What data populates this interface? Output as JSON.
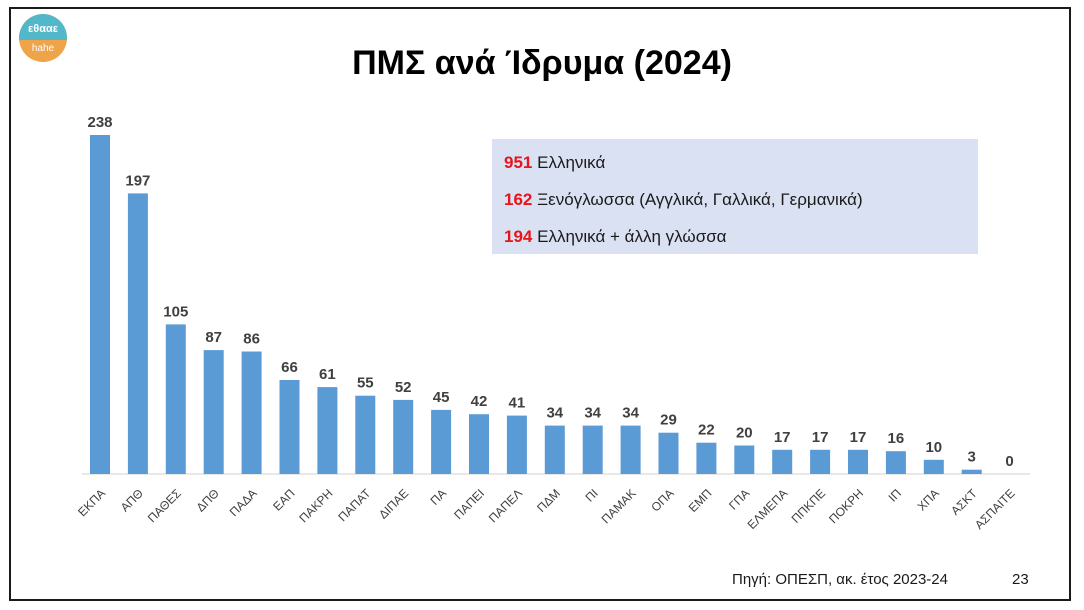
{
  "logo": {
    "top": "εθααε",
    "bottom": "hahe"
  },
  "chart_data": {
    "type": "bar",
    "title": "ΠΜΣ ανά Ίδρυμα (2024)",
    "xlabel": "",
    "ylabel": "",
    "categories": [
      "ΕΚΠΑ",
      "ΑΠΘ",
      "ΠΑΘΕΣ",
      "ΔΠΘ",
      "ΠΑΔΑ",
      "ΕΑΠ",
      "ΠΑΚΡΗ",
      "ΠΑΠΑΤ",
      "ΔΙΠΑΕ",
      "ΠΑ",
      "ΠΑΠΕΙ",
      "ΠΑΠΕΛ",
      "ΠΔΜ",
      "ΠΙ",
      "ΠΑΜΑΚ",
      "ΟΠΑ",
      "ΕΜΠ",
      "ΓΠΑ",
      "ΕΛΜΕΠΑ",
      "ΠΠΚΠΕ",
      "ΠΟΚΡΗ",
      "ΙΠ",
      "ΧΠΑ",
      "ΑΣΚΤ",
      "ΑΣΠΑΙΤΕ"
    ],
    "values": [
      238,
      197,
      105,
      87,
      86,
      66,
      61,
      55,
      52,
      45,
      42,
      41,
      34,
      34,
      34,
      29,
      22,
      20,
      17,
      17,
      17,
      16,
      10,
      3,
      0
    ],
    "ylim": [
      0,
      238
    ],
    "grid": false,
    "bar_color": "#5b9bd5"
  },
  "legend": {
    "lines": [
      {
        "number": "951",
        "text": "Ελληνικά"
      },
      {
        "number": "162",
        "text": "Ξενόγλωσσα (Αγγλικά, Γαλλικά, Γερμανικά)"
      },
      {
        "number": "194",
        "text": "Ελληνικά + άλλη γλώσσα"
      }
    ]
  },
  "footer": {
    "source": "Πηγή: ΟΠΕΣΠ, ακ. έτος 2023-24",
    "page": "23"
  }
}
